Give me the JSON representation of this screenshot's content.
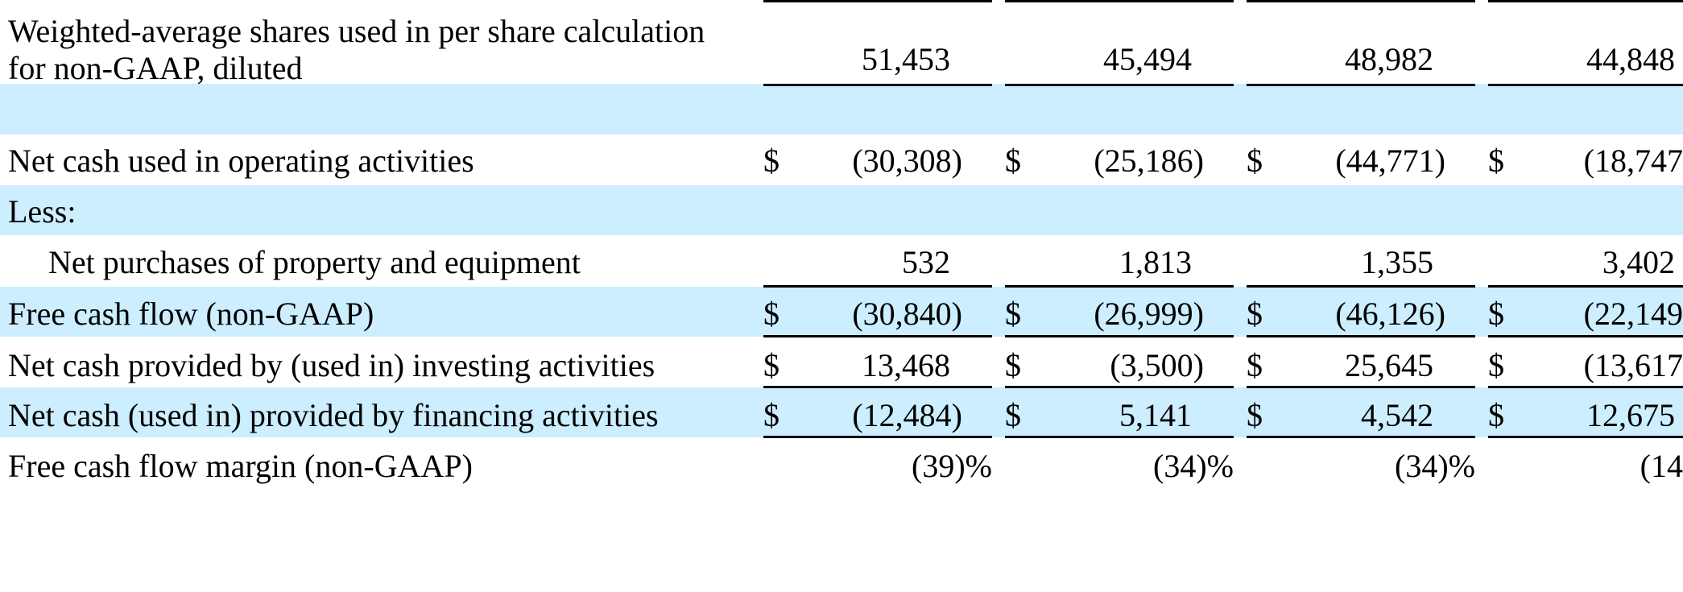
{
  "rows": {
    "shares": {
      "label_line1": "Weighted-average shares used in per share calculation",
      "label_line2": "for non-GAAP, diluted",
      "values": [
        "51,453",
        "45,494",
        "48,982",
        "44,848"
      ]
    },
    "op_cash": {
      "label": "Net cash used in operating activities",
      "currency": "$",
      "values": [
        "(30,308)",
        "(25,186)",
        "(44,771)",
        "(18,747"
      ]
    },
    "less": {
      "label": "Less:"
    },
    "purchases": {
      "label": "Net purchases of property and equipment",
      "values": [
        "532",
        "1,813",
        "1,355",
        "3,402"
      ]
    },
    "fcf": {
      "label": "Free cash flow (non-GAAP)",
      "currency": "$",
      "values": [
        "(30,840)",
        "(26,999)",
        "(46,126)",
        "(22,149"
      ]
    },
    "investing": {
      "label": "Net cash provided by (used in) investing activities",
      "currency": "$",
      "values": [
        "13,468",
        "(3,500)",
        "25,645",
        "(13,617"
      ]
    },
    "financing": {
      "label": "Net cash (used in) provided by financing activities",
      "currency": "$",
      "values": [
        "(12,484)",
        "5,141",
        "4,542",
        "12,675"
      ]
    },
    "fcf_margin": {
      "label": "Free cash flow margin (non-GAAP)",
      "values": [
        "(39)%",
        "(34)%",
        "(34)%",
        "(14"
      ]
    }
  },
  "colors": {
    "band": "#cceeff",
    "rule": "#000000"
  }
}
